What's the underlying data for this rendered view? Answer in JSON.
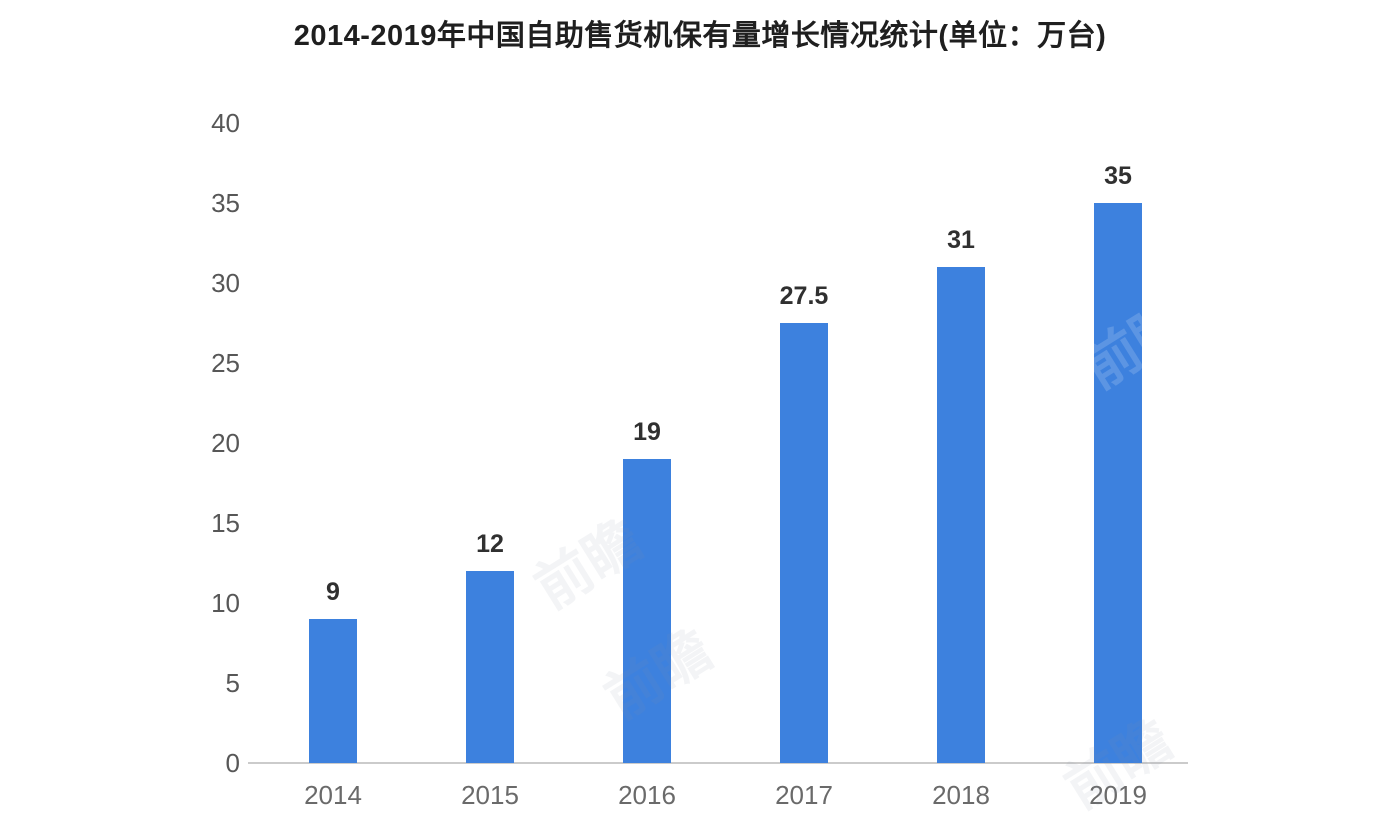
{
  "title": "2014-2019年中国自助售货机保有量增长情况统计(单位：万台)",
  "chart_data": {
    "type": "bar",
    "categories": [
      "2014",
      "2015",
      "2016",
      "2017",
      "2018",
      "2019"
    ],
    "values": [
      9,
      12,
      19,
      27.5,
      31,
      35
    ],
    "value_labels": [
      "9",
      "12",
      "19",
      "27.5",
      "31",
      "35"
    ],
    "title": "2014-2019年中国自助售货机保有量增长情况统计(单位：万台)",
    "xlabel": "",
    "ylabel": "",
    "ylim": [
      0,
      40
    ],
    "yticks": [
      0,
      5,
      10,
      15,
      20,
      25,
      30,
      35,
      40
    ],
    "grid": false,
    "legend_position": "none",
    "bar_color": "#3d81de",
    "axis_line_color": "#cbcbcb",
    "tick_label_color": "#575757",
    "value_label_color": "#303030"
  },
  "watermarks": [
    {
      "text": "前瞻",
      "placement": "on-bar-2019"
    },
    {
      "text": "前瞻",
      "placement": "white-area-mid"
    },
    {
      "text": "前瞻",
      "placement": "white-area-lower"
    },
    {
      "text": "前瞻",
      "placement": "bottom-right"
    }
  ]
}
